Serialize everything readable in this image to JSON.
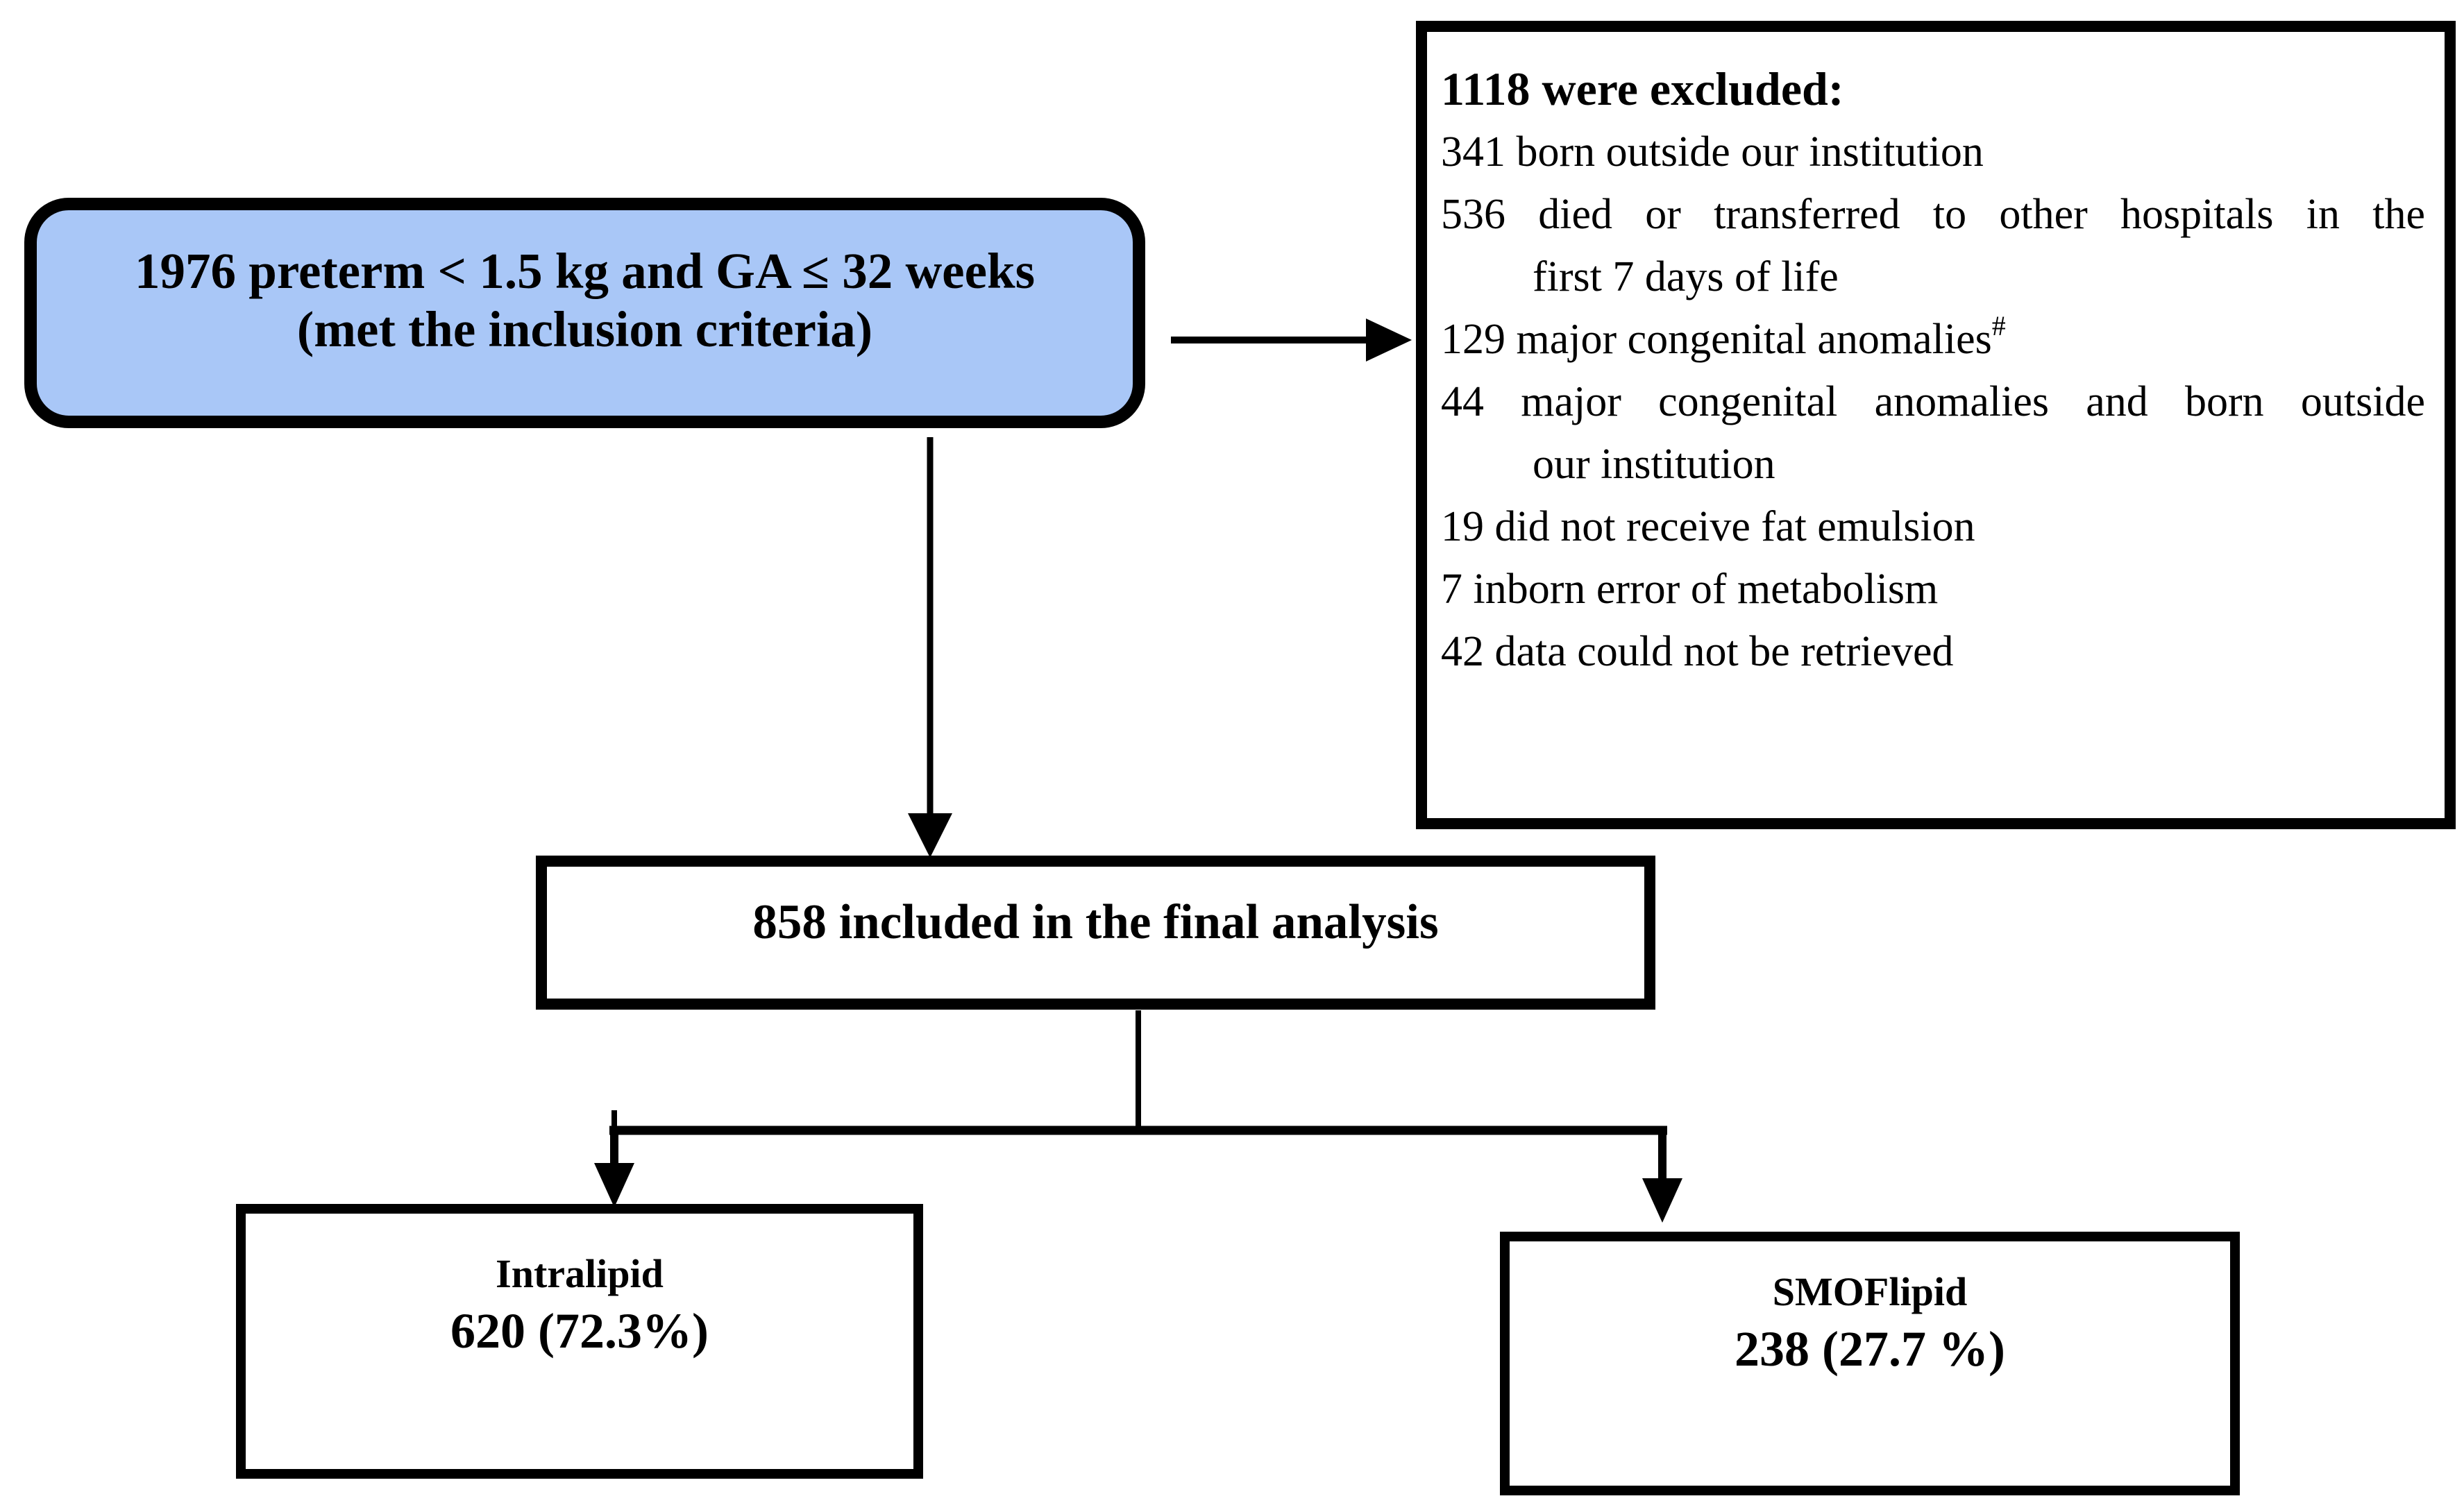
{
  "colors": {
    "accent_blue": "#a9c7f7",
    "line_black": "#000000",
    "background": "#ffffff"
  },
  "inclusion_box": {
    "line1": "1976 preterm < 1.5 kg and GA ≤ 32 weeks",
    "line2": "(met the inclusion criteria)"
  },
  "exclusion_box": {
    "title": "1118 were excluded:",
    "lines": [
      {
        "text": "341 born outside our institution"
      },
      {
        "text": "536 died or transferred to other hospitals in the",
        "justify": true
      },
      {
        "text": "first 7 days of life",
        "indent": true
      },
      {
        "text": "129 major congenital anomalies",
        "sup": "#"
      },
      {
        "text": "44 major congenital anomalies and born outside",
        "justify": true
      },
      {
        "text": "our institution",
        "indent": true
      },
      {
        "text": "19 did not receive fat emulsion"
      },
      {
        "text": "7 inborn error of metabolism"
      },
      {
        "text": "42 data could not be retrieved"
      }
    ]
  },
  "analysis_box": {
    "label": "858 included in the final analysis"
  },
  "group_boxes": [
    {
      "name": "Intralipid",
      "value": "620 (72.3%)"
    },
    {
      "name": "SMOFlipid",
      "value": "238 (27.7 %)"
    }
  ]
}
